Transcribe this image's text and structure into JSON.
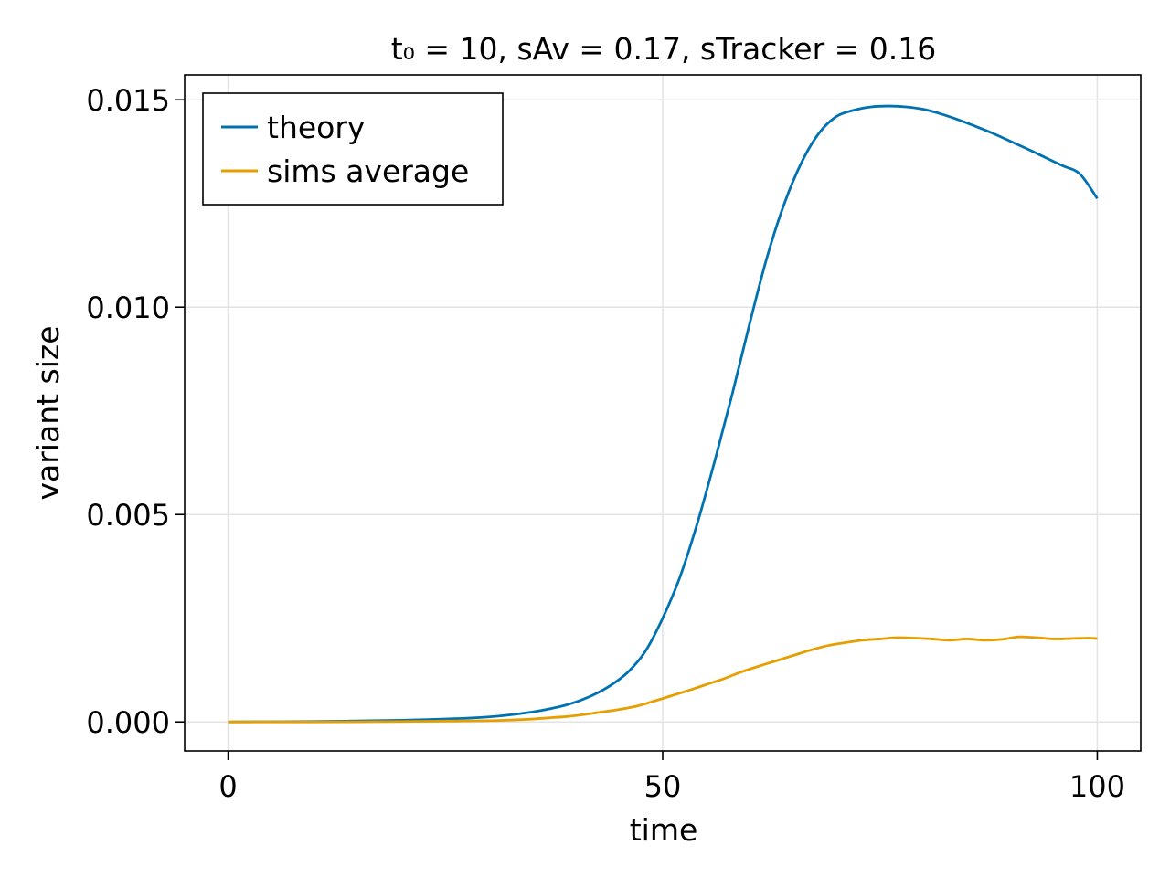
{
  "chart_data": {
    "type": "line",
    "title": "t₀ = 10, sAv = 0.17, sTracker = 0.16",
    "xlabel": "time",
    "ylabel": "variant size",
    "xlim": [
      -5,
      105
    ],
    "ylim": [
      -0.0007,
      0.0156
    ],
    "xticks": [
      0,
      50,
      100
    ],
    "xtick_labels": [
      "0",
      "50",
      "100"
    ],
    "yticks": [
      0.0,
      0.005,
      0.01,
      0.015
    ],
    "ytick_labels": [
      "0.000",
      "0.005",
      "0.010",
      "0.015"
    ],
    "grid": true,
    "legend_position": "top-left",
    "series": [
      {
        "name": "theory",
        "color": "#0072b2",
        "x": [
          0,
          10,
          20,
          25,
          30,
          35,
          38,
          40,
          42,
          44,
          46,
          48,
          50,
          52,
          54,
          56,
          58,
          60,
          62,
          64,
          66,
          68,
          70,
          72,
          74,
          76,
          78,
          80,
          82,
          84,
          86,
          88,
          90,
          92,
          94,
          96,
          98,
          100
        ],
        "y": [
          0.0,
          1e-05,
          4e-05,
          7e-05,
          0.00012,
          0.00024,
          0.00036,
          0.00048,
          0.00065,
          0.00088,
          0.0012,
          0.0017,
          0.0025,
          0.0035,
          0.0048,
          0.0063,
          0.0079,
          0.0096,
          0.0112,
          0.0125,
          0.0135,
          0.0142,
          0.0146,
          0.01475,
          0.01483,
          0.01485,
          0.01483,
          0.01477,
          0.01466,
          0.01452,
          0.01436,
          0.01419,
          0.014,
          0.01381,
          0.01361,
          0.01341,
          0.01321,
          0.01262
        ]
      },
      {
        "name": "sims average",
        "color": "#e69f00",
        "x": [
          0,
          10,
          20,
          25,
          30,
          33,
          35,
          37,
          39,
          41,
          43,
          45,
          47,
          49,
          51,
          53,
          55,
          57,
          59,
          61,
          63,
          65,
          67,
          69,
          71,
          73,
          75,
          77,
          79,
          81,
          83,
          85,
          87,
          89,
          91,
          93,
          95,
          97,
          99,
          100
        ],
        "y": [
          0.0,
          0.0,
          1e-05,
          2e-05,
          3e-05,
          5e-05,
          7e-05,
          0.0001,
          0.00013,
          0.00018,
          0.00024,
          0.0003,
          0.00038,
          0.0005,
          0.00063,
          0.00076,
          0.0009,
          0.00104,
          0.0012,
          0.00134,
          0.00147,
          0.0016,
          0.00173,
          0.00184,
          0.00191,
          0.00197,
          0.002,
          0.00203,
          0.00202,
          0.002,
          0.00197,
          0.002,
          0.00197,
          0.00199,
          0.00205,
          0.00203,
          0.002,
          0.00201,
          0.00202,
          0.00201
        ]
      }
    ]
  }
}
